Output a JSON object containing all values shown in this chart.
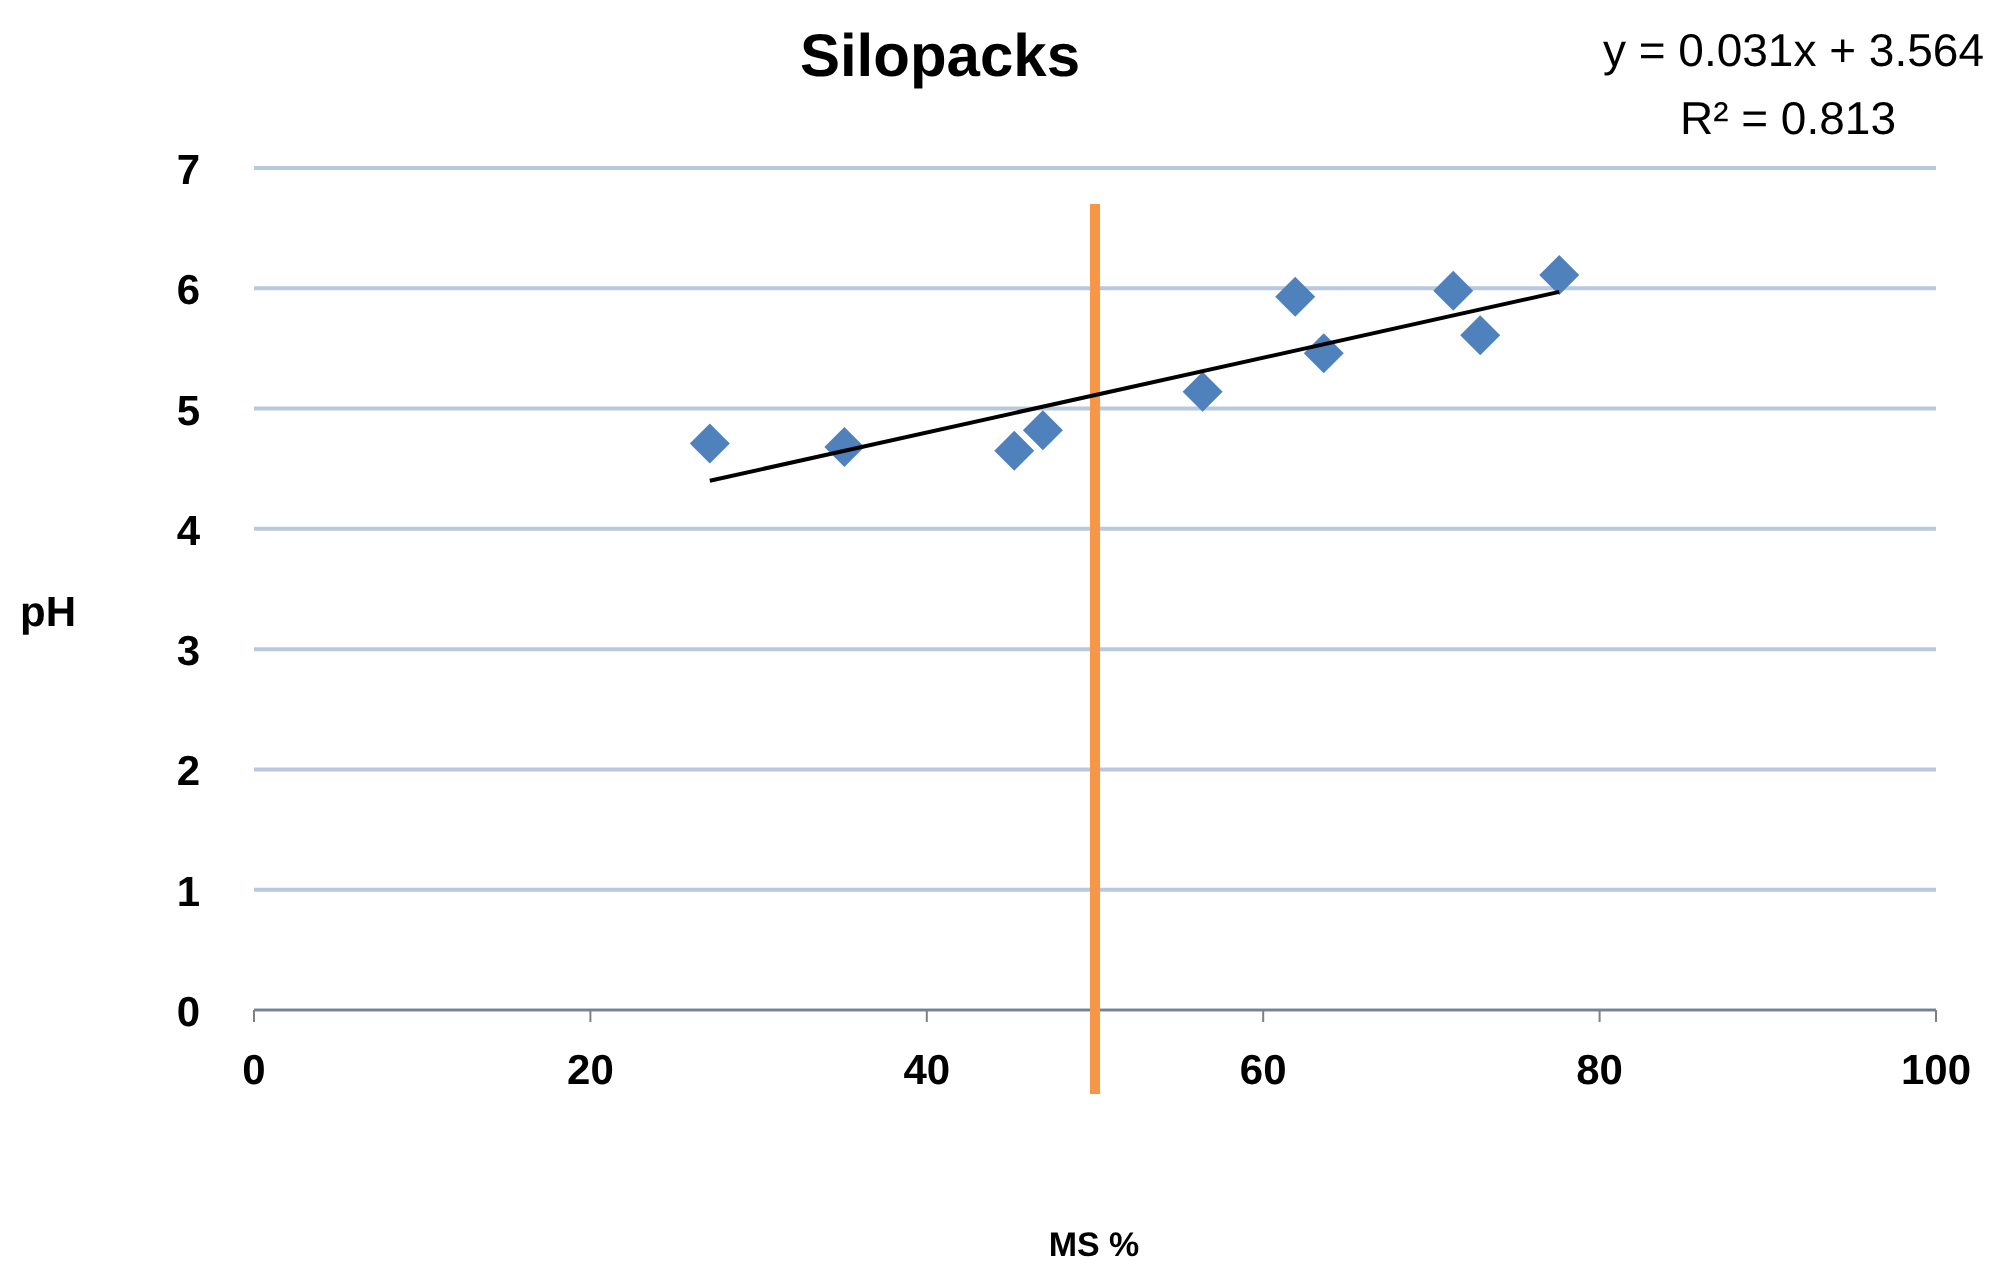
{
  "chart_data": {
    "type": "scatter",
    "title": "Silopacks",
    "xlabel": "MS %",
    "ylabel": "pH",
    "annotations": [
      "y = 0.031x + 3.564",
      "R² = 0.813"
    ],
    "xlim": [
      0,
      100
    ],
    "xticks": [
      0,
      20,
      40,
      60,
      80,
      100
    ],
    "ylim": [
      0,
      7
    ],
    "yticks": [
      0,
      1,
      2,
      3,
      4,
      5,
      6,
      7
    ],
    "grid": "y",
    "marker": "diamond",
    "series": [
      {
        "color": "#4f81bd",
        "x": [
          27.1,
          35.1,
          45.2,
          46.9,
          56.4,
          61.9,
          63.6,
          71.3,
          72.9,
          77.6
        ],
        "values": [
          4.71,
          4.68,
          4.65,
          4.82,
          5.14,
          5.93,
          5.46,
          5.98,
          5.61,
          6.11
        ]
      },
      {
        "type": "line",
        "color": "#000000",
        "marker": "none",
        "line_style": "solid",
        "x": [
          27.1,
          77.6
        ],
        "values": [
          4.4,
          5.97
        ]
      }
    ],
    "ref_lines": [
      {
        "axis": "x",
        "value": 50,
        "color": "#f79646",
        "line_style": "solid"
      }
    ]
  }
}
